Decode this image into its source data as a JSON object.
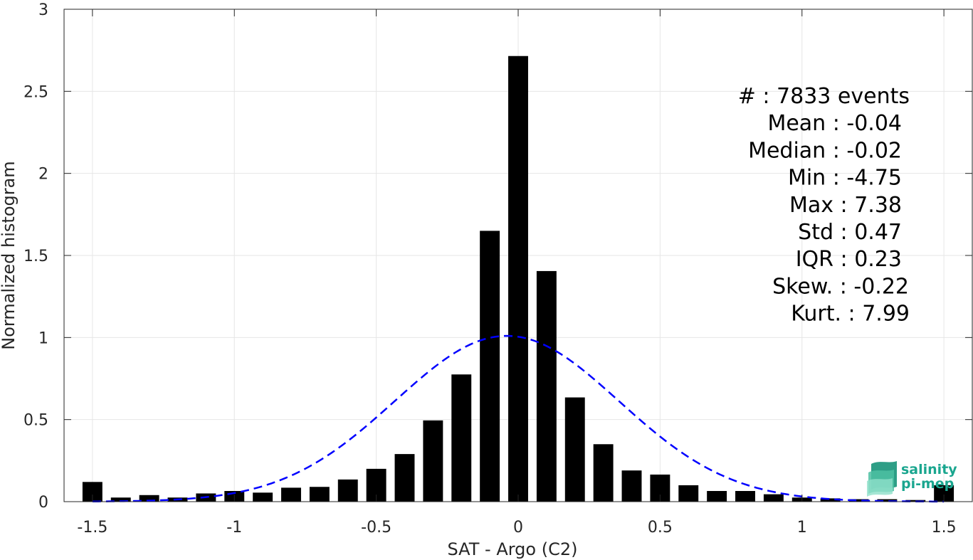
{
  "chart_data": {
    "type": "bar",
    "xlabel": "SAT - Argo (C2)",
    "ylabel": "Normalized histogram",
    "xlim": [
      -1.6,
      1.6
    ],
    "ylim": [
      0,
      3
    ],
    "xticks": [
      -1.5,
      -1,
      -0.5,
      0,
      0.5,
      1,
      1.5
    ],
    "xtick_labels": [
      "-1.5",
      "-1",
      "-0.5",
      "0",
      "0.5",
      "1",
      "1.5"
    ],
    "yticks": [
      0,
      0.5,
      1,
      1.5,
      2,
      2.5,
      3
    ],
    "ytick_labels": [
      "0",
      "0.5",
      "1",
      "1.5",
      "2",
      "2.5",
      "3"
    ],
    "grid": true,
    "bar_width": 0.07,
    "bars": {
      "x": [
        -1.5,
        -1.4,
        -1.3,
        -1.2,
        -1.1,
        -1.0,
        -0.9,
        -0.8,
        -0.7,
        -0.6,
        -0.5,
        -0.4,
        -0.3,
        -0.2,
        -0.1,
        0.0,
        0.1,
        0.2,
        0.3,
        0.4,
        0.5,
        0.6,
        0.7,
        0.8,
        0.9,
        1.0,
        1.1,
        1.2,
        1.3,
        1.4,
        1.5
      ],
      "values": [
        0.12,
        0.025,
        0.04,
        0.025,
        0.05,
        0.065,
        0.055,
        0.085,
        0.09,
        0.135,
        0.2,
        0.29,
        0.495,
        0.775,
        1.65,
        2.715,
        1.405,
        0.635,
        0.35,
        0.19,
        0.165,
        0.1,
        0.065,
        0.065,
        0.045,
        0.025,
        0.02,
        0.015,
        0.015,
        0.01,
        0.1
      ],
      "color": "#000000"
    },
    "fit_curve": {
      "style": "dashed",
      "color": "#0000ff",
      "mean": -0.04,
      "std": 0.395,
      "peak": 1.01
    },
    "stats_lines": [
      "#  : 7833 events",
      "Mean : -0.04",
      "Median : -0.02",
      "Min : -4.75",
      "Max : 7.38",
      "Std : 0.47",
      "IQR : 0.23",
      "Skew. : -0.22",
      "Kurt. : 7.99"
    ]
  },
  "logo": {
    "line1": "salinity",
    "line2": "pi-mep",
    "color": "#1aa68f"
  }
}
